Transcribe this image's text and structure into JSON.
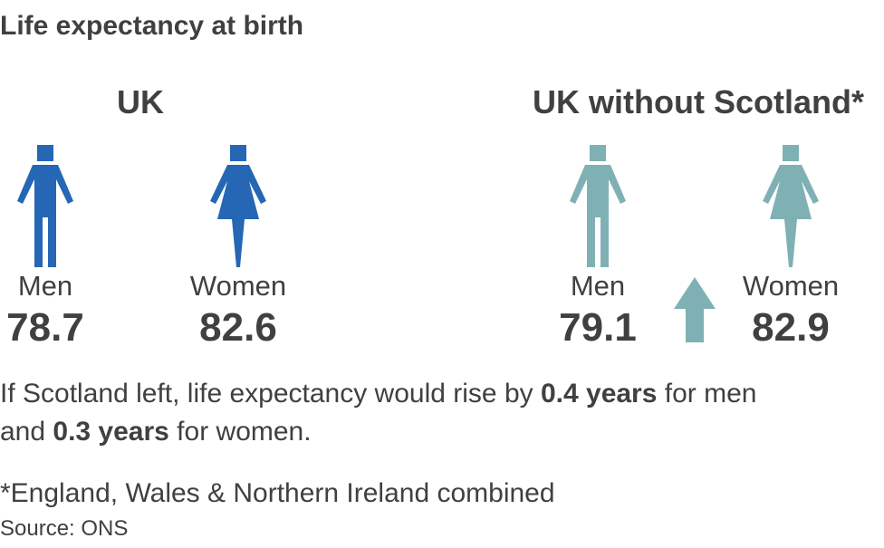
{
  "title": "Life expectancy at birth",
  "groups": [
    {
      "heading": "UK",
      "color": "#2566b5",
      "items": [
        {
          "label": "Men",
          "value": 78.7
        },
        {
          "label": "Women",
          "value": 82.6
        }
      ]
    },
    {
      "heading": "UK without Scotland*",
      "color": "#7fb1b4",
      "items": [
        {
          "label": "Men",
          "value": 79.1
        },
        {
          "label": "Women",
          "value": 82.9
        }
      ]
    }
  ],
  "note": [
    {
      "text": "If Scotland left, life expectancy would rise by ",
      "bold": false
    },
    {
      "text": "0.4 years",
      "bold": true
    },
    {
      "text": " for men and ",
      "bold": false
    },
    {
      "text": "0.3 years",
      "bold": true
    },
    {
      "text": " for women.",
      "bold": false
    }
  ],
  "footnote": "*England, Wales & Northern Ireland combined",
  "source": "Source: ONS"
}
